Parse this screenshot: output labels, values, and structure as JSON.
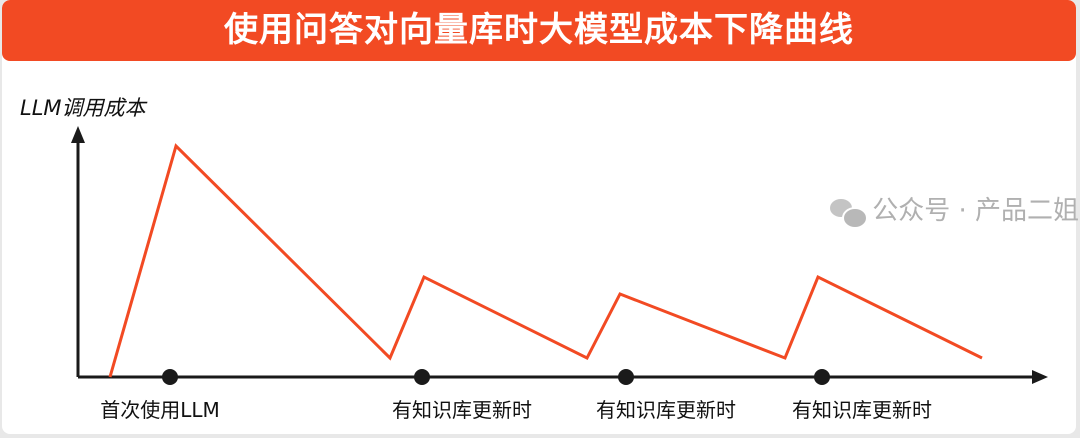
{
  "title": "使用问答对向量库时大模型成本下降曲线",
  "y_axis_label": "LLM调用成本",
  "x_labels": [
    "首次使用LLM",
    "有知识库更新时",
    "有知识库更新时",
    "有知识库更新时"
  ],
  "watermark": "公众号 · 产品二姐",
  "colors": {
    "accent": "#f24a23",
    "axis": "#1a1a1a",
    "background": "#ffffff"
  },
  "icons": {
    "watermark": "wechat-icon"
  }
}
